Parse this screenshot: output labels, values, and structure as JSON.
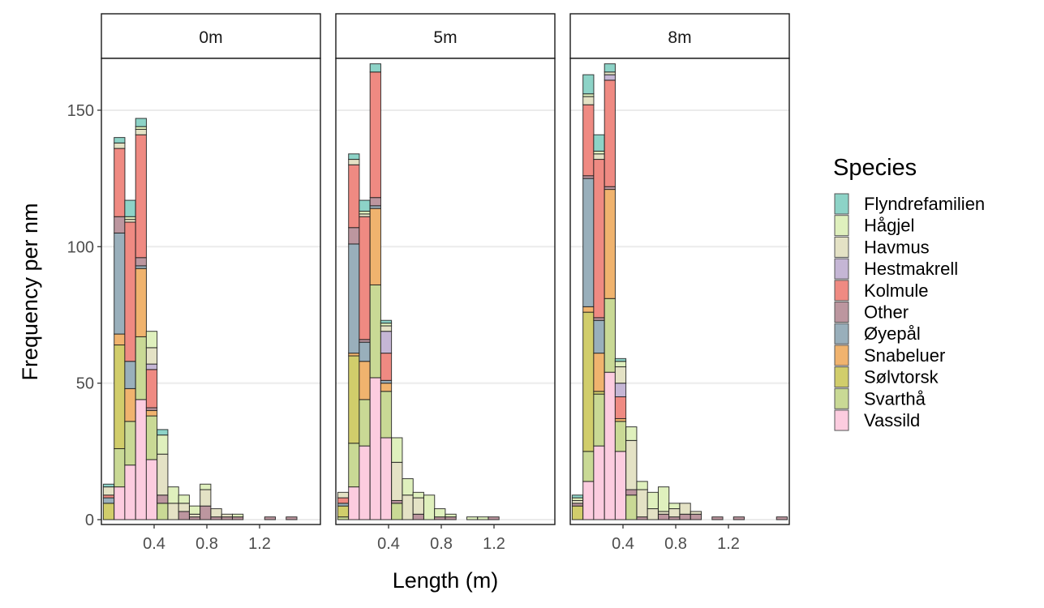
{
  "chart_data": {
    "type": "bar",
    "subtype": "stacked-histogram-faceted",
    "xlabel": "Length (m)",
    "ylabel": "Frequency per nm",
    "xlim": [
      0,
      1.66
    ],
    "ylim": [
      0,
      171
    ],
    "x_ticks": [
      "0.4",
      "0.8",
      "1.2"
    ],
    "x_tick_values": [
      0.4,
      0.8,
      1.2
    ],
    "y_ticks": [
      "0",
      "50",
      "100",
      "150"
    ],
    "y_tick_values": [
      0,
      50,
      100,
      150
    ],
    "grid": "horizontal-major",
    "binwidth": 0.082,
    "legend": {
      "title": "Species",
      "placement": "right",
      "entries": [
        "Flyndrefamilien",
        "Hågjel",
        "Havmus",
        "Hestmakrell",
        "Kolmule",
        "Other",
        "Øyepål",
        "Snabeluer",
        "Sølvtorsk",
        "Svarthå",
        "Vassild"
      ]
    },
    "colors": [
      "#8dd3c7",
      "#dff0bd",
      "#e4e2c5",
      "#c5b6d5",
      "#ef8a82",
      "#bc969f",
      "#99afbb",
      "#f0b36e",
      "#d1cd6b",
      "#c9d995",
      "#fcccdf"
    ],
    "facets": [
      {
        "label": "0m",
        "bars": [
          {
            "x0": 0.014,
            "counts": [
              1,
              0,
              3,
              0,
              1,
              0,
              2,
              0,
              6,
              0,
              0
            ]
          },
          {
            "x0": 0.096,
            "counts": [
              2,
              0,
              2,
              0,
              25,
              6,
              37,
              4,
              38,
              14,
              12
            ]
          },
          {
            "x0": 0.177,
            "counts": [
              6,
              1,
              1,
              0,
              51,
              0,
              10,
              12,
              0,
              16,
              20
            ]
          },
          {
            "x0": 0.259,
            "counts": [
              3,
              1,
              2,
              0,
              45,
              3,
              1,
              25,
              0,
              23,
              44
            ]
          },
          {
            "x0": 0.34,
            "counts": [
              0,
              6,
              6,
              2,
              14,
              1,
              0,
              2,
              0,
              16,
              22
            ]
          },
          {
            "x0": 0.422,
            "counts": [
              2,
              7,
              15,
              0,
              0,
              3,
              0,
              0,
              0,
              6,
              0
            ]
          },
          {
            "x0": 0.504,
            "counts": [
              0,
              6,
              6,
              0,
              0,
              0,
              0,
              0,
              0,
              0,
              0
            ]
          },
          {
            "x0": 0.585,
            "counts": [
              0,
              3,
              3,
              0,
              0,
              3,
              0,
              0,
              0,
              0,
              0
            ]
          },
          {
            "x0": 0.667,
            "counts": [
              0,
              3,
              1,
              0,
              0,
              1,
              0,
              0,
              0,
              0,
              0
            ]
          },
          {
            "x0": 0.748,
            "counts": [
              0,
              2,
              6,
              0,
              0,
              5,
              0,
              0,
              0,
              0,
              0
            ]
          },
          {
            "x0": 0.83,
            "counts": [
              0,
              0,
              3,
              0,
              0,
              1,
              0,
              0,
              0,
              0,
              0
            ]
          },
          {
            "x0": 0.912,
            "counts": [
              0,
              0,
              1,
              0,
              0,
              1,
              0,
              0,
              0,
              0,
              0
            ]
          },
          {
            "x0": 0.993,
            "counts": [
              0,
              1,
              0,
              0,
              0,
              1,
              0,
              0,
              0,
              0,
              0
            ]
          },
          {
            "x0": 1.238,
            "counts": [
              0,
              0,
              0,
              0,
              0,
              1,
              0,
              0,
              0,
              0,
              0
            ]
          },
          {
            "x0": 1.401,
            "counts": [
              0,
              0,
              0,
              0,
              0,
              1,
              0,
              0,
              0,
              0,
              0
            ]
          }
        ]
      },
      {
        "label": "5m",
        "bars": [
          {
            "x0": 0.014,
            "counts": [
              0,
              0,
              2,
              0,
              2,
              0,
              1,
              0,
              4,
              1,
              0
            ]
          },
          {
            "x0": 0.096,
            "counts": [
              2,
              0,
              2,
              0,
              23,
              6,
              40,
              1,
              32,
              16,
              12
            ]
          },
          {
            "x0": 0.177,
            "counts": [
              4,
              1,
              1,
              0,
              45,
              1,
              7,
              14,
              0,
              17,
              27
            ]
          },
          {
            "x0": 0.259,
            "counts": [
              3,
              0,
              0,
              0,
              46,
              3,
              1,
              28,
              0,
              34,
              52
            ]
          },
          {
            "x0": 0.34,
            "counts": [
              1,
              1,
              2,
              8,
              10,
              0,
              1,
              3,
              0,
              17,
              30
            ]
          },
          {
            "x0": 0.422,
            "counts": [
              0,
              9,
              14,
              0,
              0,
              1,
              0,
              0,
              0,
              6,
              0
            ]
          },
          {
            "x0": 0.504,
            "counts": [
              0,
              6,
              9,
              0,
              0,
              0,
              0,
              0,
              0,
              0,
              0
            ]
          },
          {
            "x0": 0.585,
            "counts": [
              0,
              2,
              6,
              0,
              0,
              2,
              0,
              0,
              0,
              0,
              0
            ]
          },
          {
            "x0": 0.667,
            "counts": [
              0,
              9,
              0,
              0,
              0,
              0,
              0,
              0,
              0,
              0,
              0
            ]
          },
          {
            "x0": 0.748,
            "counts": [
              0,
              3,
              0,
              0,
              0,
              1,
              0,
              0,
              0,
              0,
              0
            ]
          },
          {
            "x0": 0.83,
            "counts": [
              0,
              1,
              0,
              0,
              0,
              1,
              0,
              0,
              0,
              0,
              0
            ]
          },
          {
            "x0": 0.993,
            "counts": [
              0,
              1,
              0,
              0,
              0,
              0,
              0,
              0,
              0,
              0,
              0
            ]
          },
          {
            "x0": 1.075,
            "counts": [
              0,
              1,
              0,
              0,
              0,
              0,
              0,
              0,
              0,
              0,
              0
            ]
          },
          {
            "x0": 1.156,
            "counts": [
              0,
              0,
              0,
              0,
              0,
              1,
              0,
              0,
              0,
              0,
              0
            ]
          }
        ]
      },
      {
        "label": "8m",
        "bars": [
          {
            "x0": 0.014,
            "counts": [
              1,
              1,
              1,
              0,
              0,
              1,
              0,
              0,
              5,
              0,
              0
            ]
          },
          {
            "x0": 0.096,
            "counts": [
              7,
              1,
              3,
              0,
              26,
              1,
              47,
              2,
              51,
              11,
              14
            ]
          },
          {
            "x0": 0.177,
            "counts": [
              6,
              1,
              2,
              0,
              58,
              1,
              12,
              14,
              1,
              19,
              27
            ]
          },
          {
            "x0": 0.259,
            "counts": [
              3,
              0,
              1,
              2,
              39,
              1,
              0,
              40,
              0,
              27,
              54
            ]
          },
          {
            "x0": 0.34,
            "counts": [
              1,
              2,
              6,
              5,
              8,
              0,
              0,
              1,
              0,
              11,
              25
            ]
          },
          {
            "x0": 0.422,
            "counts": [
              0,
              5,
              18,
              0,
              0,
              2,
              0,
              0,
              0,
              9,
              0
            ]
          },
          {
            "x0": 0.504,
            "counts": [
              0,
              3,
              10,
              0,
              0,
              1,
              0,
              0,
              0,
              0,
              0
            ]
          },
          {
            "x0": 0.585,
            "counts": [
              0,
              6,
              4,
              0,
              0,
              0,
              0,
              0,
              0,
              0,
              0
            ]
          },
          {
            "x0": 0.667,
            "counts": [
              0,
              9,
              1,
              0,
              0,
              2,
              0,
              0,
              0,
              0,
              0
            ]
          },
          {
            "x0": 0.748,
            "counts": [
              0,
              2,
              3,
              0,
              0,
              1,
              0,
              0,
              0,
              0,
              0
            ]
          },
          {
            "x0": 0.83,
            "counts": [
              0,
              0,
              4,
              0,
              0,
              2,
              0,
              0,
              0,
              0,
              0
            ]
          },
          {
            "x0": 0.912,
            "counts": [
              0,
              0,
              1,
              0,
              0,
              2,
              0,
              0,
              0,
              0,
              0
            ]
          },
          {
            "x0": 1.075,
            "counts": [
              0,
              0,
              0,
              0,
              0,
              1,
              0,
              0,
              0,
              0,
              0
            ]
          },
          {
            "x0": 1.238,
            "counts": [
              0,
              0,
              0,
              0,
              0,
              1,
              0,
              0,
              0,
              0,
              0
            ]
          },
          {
            "x0": 1.564,
            "counts": [
              0,
              0,
              0,
              0,
              0,
              1,
              0,
              0,
              0,
              0,
              0
            ]
          }
        ]
      }
    ]
  }
}
